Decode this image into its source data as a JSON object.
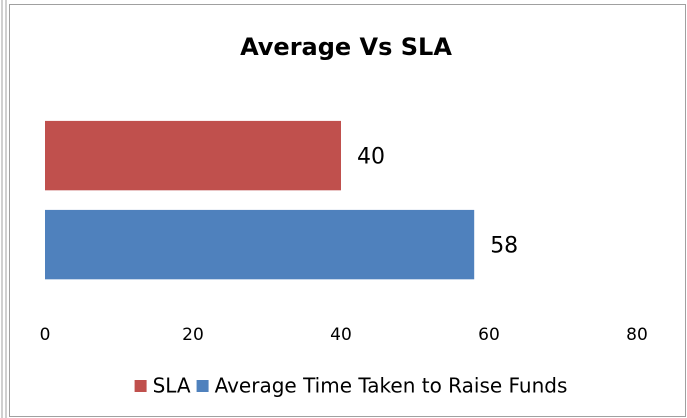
{
  "chart_data": {
    "type": "hbar",
    "title": "Average Vs SLA",
    "categories": [
      null
    ],
    "series": [
      {
        "name": "SLA",
        "color": "#c0504d",
        "values": [
          40
        ]
      },
      {
        "name": "Average Time Taken to Raise Funds",
        "color": "#4f81bd",
        "values": [
          58
        ]
      }
    ],
    "xlim": [
      0,
      80
    ],
    "xticks": [
      0,
      20,
      40,
      60,
      80
    ],
    "grid": false,
    "legend": "bottom",
    "data_labels": true
  }
}
